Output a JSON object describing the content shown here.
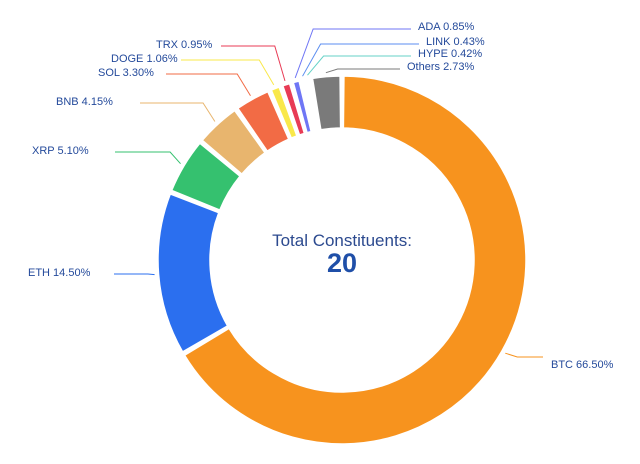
{
  "center": {
    "title": "Total Constituents:",
    "value": "20"
  },
  "chart_data": {
    "type": "donut",
    "title": "",
    "legend": "none",
    "slices": [
      {
        "name": "BTC",
        "value": 66.5,
        "label": "BTC 66.50%",
        "color": "#f7931e"
      },
      {
        "name": "ETH",
        "value": 14.5,
        "label": "ETH 14.50%",
        "color": "#2b6fef"
      },
      {
        "name": "XRP",
        "value": 5.1,
        "label": "XRP 5.10%",
        "color": "#35c16f"
      },
      {
        "name": "BNB",
        "value": 4.15,
        "label": "BNB 4.15%",
        "color": "#e8b56e"
      },
      {
        "name": "SOL",
        "value": 3.3,
        "label": "SOL 3.30%",
        "color": "#f26b45"
      },
      {
        "name": "DOGE",
        "value": 1.06,
        "label": "DOGE 1.06%",
        "color": "#f9e84a"
      },
      {
        "name": "TRX",
        "value": 0.95,
        "label": "TRX 0.95%",
        "color": "#e83b55"
      },
      {
        "name": "ADA",
        "value": 0.85,
        "label": "ADA 0.85%",
        "color": "#6f76f5"
      },
      {
        "name": "LINK",
        "value": 0.43,
        "label": "LINK 0.43%",
        "color": "#5b8df0"
      },
      {
        "name": "HYPE",
        "value": 0.42,
        "label": "HYPE 0.42%",
        "color": "#66d2c7"
      },
      {
        "name": "Others",
        "value": 2.73,
        "label": "Others 2.73%",
        "color": "#7a7a7a"
      }
    ]
  }
}
